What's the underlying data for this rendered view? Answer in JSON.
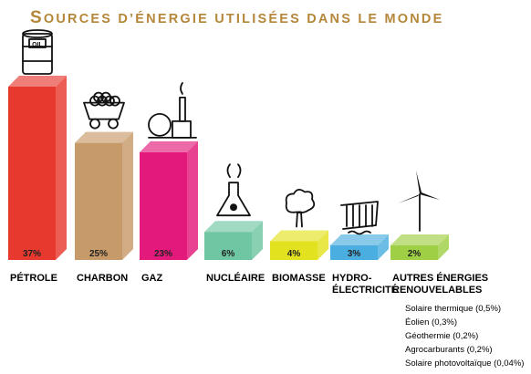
{
  "chart_data": {
    "type": "bar",
    "title": "Sources d’énergie utilisées dans le monde",
    "categories": [
      [
        "PÉTROLE"
      ],
      [
        "CHARBON"
      ],
      [
        "GAZ"
      ],
      [
        "NUCLÉAIRE"
      ],
      [
        "BIOMASSE"
      ],
      [
        "HYDRO-",
        "ÉLECTRICITÉ"
      ],
      [
        "AUTRES ÉNERGIES",
        "RENOUVELABLES"
      ]
    ],
    "values": [
      37,
      25,
      23,
      6,
      4,
      3,
      2
    ],
    "value_labels": [
      "37%",
      "25%",
      "23%",
      "6%",
      "4%",
      "3%",
      "2%"
    ],
    "colors": [
      "#e8392f",
      "#c79a6a",
      "#e31a7b",
      "#6fc6a2",
      "#e3e21e",
      "#4aaee0",
      "#9fcf45"
    ],
    "icons": [
      "oil-barrel-icon",
      "coal-cart-icon",
      "gas-plant-icon",
      "nuclear-flask-icon",
      "tree-icon",
      "dam-icon",
      "wind-turbine-icon"
    ],
    "ylim": [
      0,
      37
    ],
    "sub_items": [
      "Solaire thermique (0,5%)",
      "Éolien (0,3%)",
      "Géothermie (0,2%)",
      "Agrocarburants (0,2%)",
      "Solaire photovoltaïque (0,04%)"
    ]
  }
}
